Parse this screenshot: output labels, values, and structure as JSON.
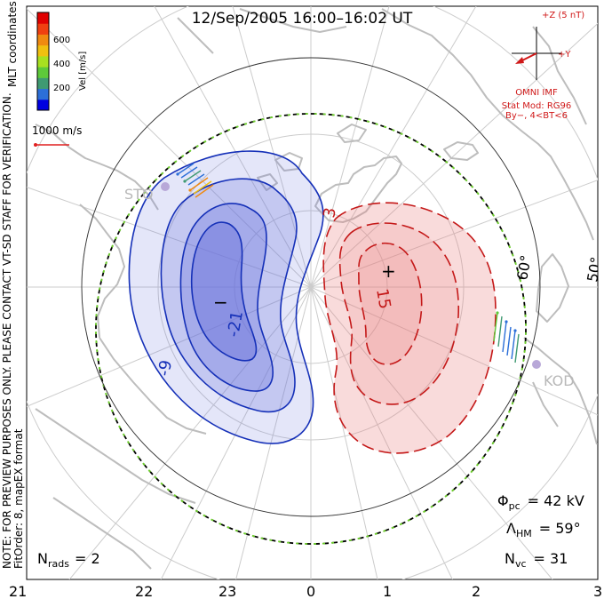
{
  "title": "12/Sep/2005 16:00–16:02 UT",
  "coordinates_label": "MLT coordinates",
  "velocity_scale": {
    "unit_label": "Vel [m/s]",
    "ticks": [
      "600",
      "400",
      "200"
    ],
    "colors": [
      "#0000e0",
      "#2c6fd8",
      "#3f9a72",
      "#5ec93a",
      "#a8e020",
      "#f0c010",
      "#f08a10",
      "#f04010",
      "#e00000"
    ]
  },
  "reference_vector": {
    "label": "1000 m/s",
    "color": "#e02020"
  },
  "notice": {
    "line1": "NOTE: FOR PREVIEW PURPOSES ONLY. PLEASE CONTACT VT-SD STAFF FOR VERIFICATION.",
    "line2": "FitOrder: 8, mapEX format"
  },
  "imf": {
    "z_label": "+Z (5 nT)",
    "y_label": "+Y",
    "source": "OMNI IMF",
    "model": "Stat Mod: RG96",
    "conditions": "By−, 4<BT<6"
  },
  "radar_labels": [
    "STO",
    "KOD"
  ],
  "latitude_labels": [
    "60°",
    "50°"
  ],
  "contour_labels": [
    "-21",
    "-9",
    "3",
    "15"
  ],
  "extremum_markers": {
    "minimum": "−",
    "maximum": "+"
  },
  "stats": {
    "nrads": {
      "symbol": "N",
      "sub": "rads",
      "value": "= 2"
    },
    "phi_pc": {
      "symbol": "Φ",
      "sub": "pc",
      "value": "= 42 kV"
    },
    "lambda_hm": {
      "symbol": "Λ",
      "sub": "HM",
      "value": "= 59°"
    },
    "nvc": {
      "symbol": "N",
      "sub": "vc",
      "value": "= 31"
    }
  },
  "mlt_ticks": [
    "21",
    "22",
    "23",
    "0",
    "1",
    "2",
    "3"
  ],
  "colors": {
    "negative_cell_line": "#1530b8",
    "negative_cell_fill": "#6a72dc",
    "positive_cell_line": "#c41818",
    "positive_cell_fill": "#e87c7c",
    "coastline": "#bdbdbd",
    "grid": "#cccccc"
  }
}
